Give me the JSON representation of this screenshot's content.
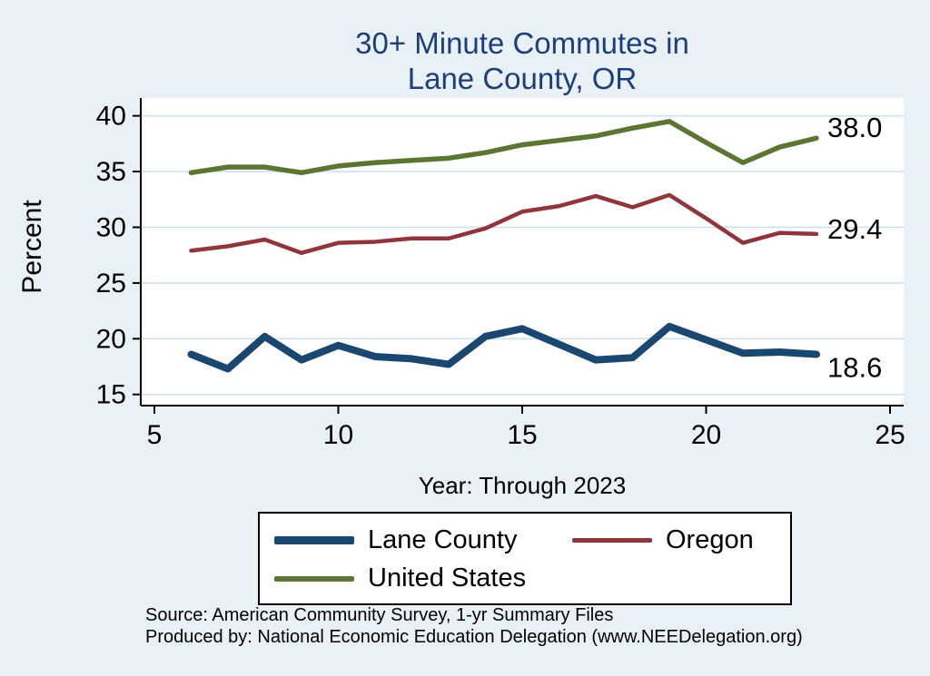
{
  "title": {
    "line1": "30+ Minute Commutes in",
    "line2": "Lane County, OR"
  },
  "axes": {
    "y_label": "Percent",
    "x_label": "Year: Through 2023",
    "y_ticks": [
      15,
      20,
      25,
      30,
      35,
      40
    ],
    "x_ticks": [
      5,
      10,
      15,
      20,
      25
    ],
    "x_range": [
      4.63,
      25.37
    ],
    "y_range": [
      14.0,
      41.6
    ]
  },
  "chart_data": {
    "type": "line",
    "title": "30+ Minute Commutes in Lane County, OR",
    "xlabel": "Year: Through 2023",
    "ylabel": "Percent",
    "xlim": [
      4.6,
      25.4
    ],
    "ylim": [
      14,
      41.6
    ],
    "grid": "horizontal",
    "legend_position": "bottom",
    "x": [
      6,
      7,
      8,
      9,
      10,
      11,
      12,
      13,
      14,
      15,
      16,
      17,
      18,
      19,
      20,
      21,
      22,
      23
    ],
    "series": [
      {
        "name": "Lane County",
        "color": "#1a476f",
        "width": 8,
        "end_label": "18.6",
        "values": [
          18.6,
          17.3,
          20.2,
          18.1,
          19.4,
          18.4,
          18.2,
          17.7,
          20.2,
          20.9,
          19.5,
          18.1,
          18.3,
          21.1,
          19.9,
          18.7,
          18.8,
          18.6
        ]
      },
      {
        "name": "Oregon",
        "color": "#90353b",
        "width": 4.5,
        "end_label": "29.4",
        "values": [
          27.9,
          28.3,
          28.9,
          27.7,
          28.6,
          28.7,
          29.0,
          29.0,
          29.9,
          31.4,
          31.9,
          32.8,
          31.8,
          32.9,
          30.8,
          28.6,
          29.5,
          29.4
        ]
      },
      {
        "name": "United States",
        "color": "#5a7632",
        "width": 5.5,
        "end_label": "38.0",
        "values": [
          34.9,
          35.4,
          35.4,
          34.9,
          35.5,
          35.8,
          36.0,
          36.2,
          36.7,
          37.4,
          37.8,
          38.2,
          38.9,
          39.5,
          37.6,
          35.8,
          37.2,
          38.0
        ]
      }
    ]
  },
  "legend": {
    "items": [
      {
        "label": "Lane County",
        "color": "#1a476f",
        "thickness": 9
      },
      {
        "label": "Oregon",
        "color": "#90353b",
        "thickness": 5
      },
      {
        "label": "United States",
        "color": "#5a7632",
        "thickness": 6
      }
    ]
  },
  "footer": {
    "source": "Source: American Community Survey, 1-yr Summary Files",
    "produced_by": "Produced by: National Economic Education Delegation (www.NEEDelegation.org)"
  },
  "colors": {
    "background": "#e9f1f6",
    "plot_background": "#ffffff",
    "grid": "#cde0ec",
    "axis": "#000000",
    "title": "#1c3f7c",
    "tick_text": "#000000"
  }
}
